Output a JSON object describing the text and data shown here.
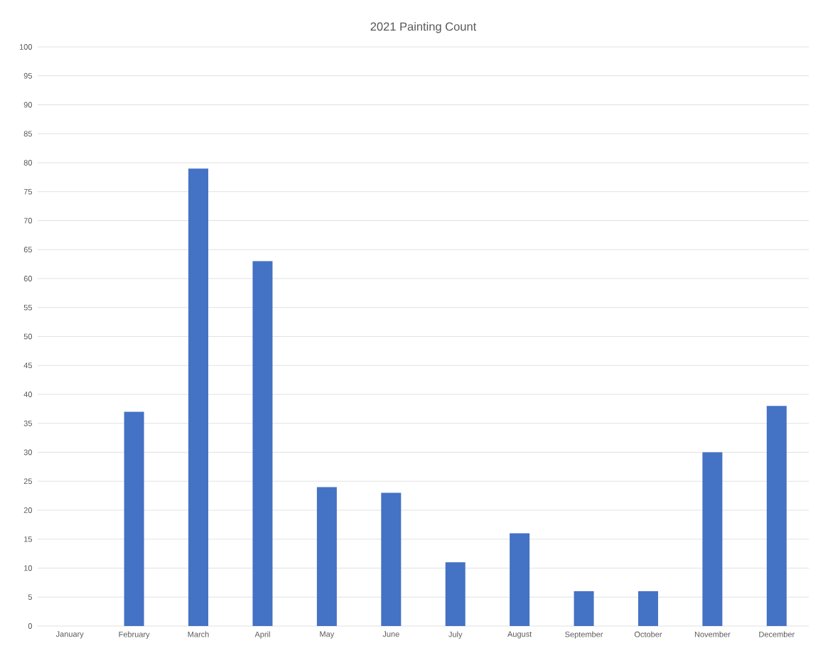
{
  "chart_data": {
    "type": "bar",
    "title": "2021 Painting Count",
    "categories": [
      "January",
      "February",
      "March",
      "April",
      "May",
      "June",
      "July",
      "August",
      "September",
      "October",
      "November",
      "December"
    ],
    "values": [
      0,
      37,
      79,
      63,
      24,
      23,
      11,
      16,
      6,
      6,
      30,
      38
    ],
    "color": "#4472c4",
    "ylim": [
      0,
      100
    ],
    "yticks": [
      0,
      5,
      10,
      15,
      20,
      25,
      30,
      35,
      40,
      45,
      50,
      55,
      60,
      65,
      70,
      75,
      80,
      85,
      90,
      95,
      100
    ],
    "grid": "y"
  }
}
